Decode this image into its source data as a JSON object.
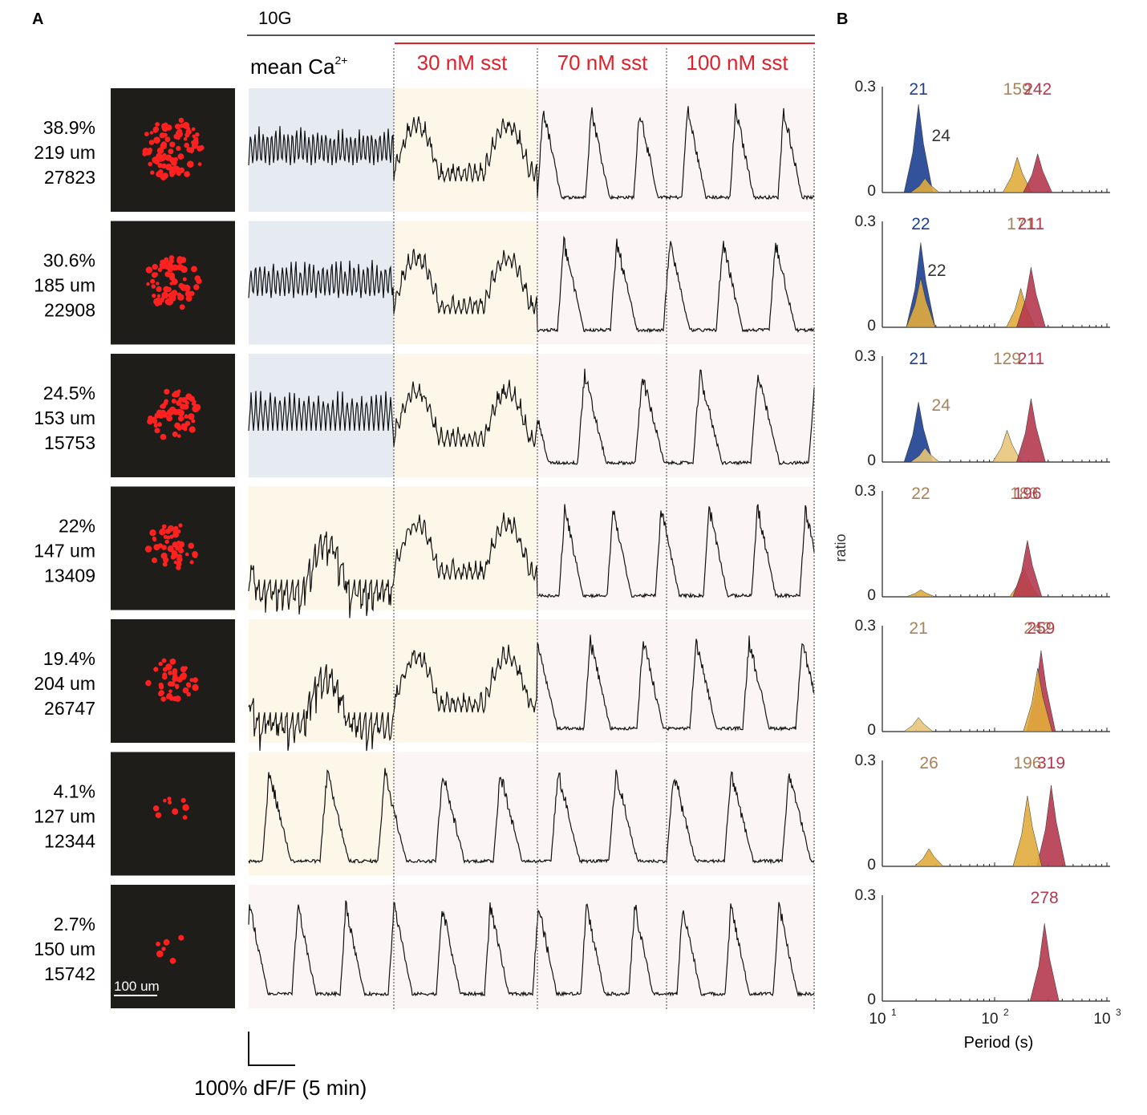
{
  "panel_labels": {
    "a": "A",
    "b": "B"
  },
  "header": {
    "glucose": "10G",
    "mean_label": "mean Ca",
    "mean_sup": "2+",
    "conditions": [
      "30 nM sst",
      "70 nM sst",
      "100 nM sst"
    ]
  },
  "colors": {
    "accent_red": "#e0212b",
    "bg_blue": "#e6ebf2",
    "bg_yellow": "#fdf7ea",
    "bg_pink": "#fcf5f5",
    "navy": "#1c3f91",
    "gold": "#e0ac3c",
    "tan": "#e8c57a",
    "crimson": "#b5394e",
    "label_navy": "#1c3f91",
    "label_tan": "#a8835a",
    "label_crimson": "#b5394e",
    "label_gray": "#333333"
  },
  "islets": [
    {
      "pct": "38.9%",
      "size": "219 um",
      "count": "27823",
      "stage1": "blue",
      "stage2": "yellow"
    },
    {
      "pct": "30.6%",
      "size": "185 um",
      "count": "22908",
      "stage1": "blue",
      "stage2": "yellow"
    },
    {
      "pct": "24.5%",
      "size": "153 um",
      "count": "15753",
      "stage1": "blue",
      "stage2": "yellow"
    },
    {
      "pct": "22%",
      "size": "147 um",
      "count": "13409",
      "stage1": "yellow",
      "stage2": "yellow"
    },
    {
      "pct": "19.4%",
      "size": "204 um",
      "count": "26747",
      "stage1": "yellow",
      "stage2": "yellow"
    },
    {
      "pct": "4.1%",
      "size": "127 um",
      "count": "12344",
      "stage1": "yellow",
      "stage2": "pink"
    },
    {
      "pct": "2.7%",
      "size": "150 um",
      "count": "15742",
      "stage1": "pink",
      "stage2": "pink"
    }
  ],
  "scale_bar_label": "100 um",
  "trace_scale_label": "100% dF/F (5 min)",
  "chart_data": {
    "type": "area",
    "description_axis": "log-scaled period histograms, one per islet",
    "xlabel": "Period (s)",
    "ylabel": "ratio",
    "x_scale": "log",
    "xlim": [
      10,
      1000
    ],
    "ylim": [
      0,
      0.3
    ],
    "x_ticks": [
      {
        "base": "10",
        "exp": "1"
      },
      {
        "base": "10",
        "exp": "2"
      },
      {
        "base": "10",
        "exp": "3"
      }
    ],
    "y_ticks": [
      "0",
      "0.3"
    ],
    "panels": [
      {
        "series": [
          {
            "color": "navy",
            "peak_x": 21,
            "peak_y": 0.25
          },
          {
            "color": "gold",
            "peak_x": 24,
            "peak_y": 0.04
          },
          {
            "color": "gold",
            "peak_x": 159,
            "peak_y": 0.1
          },
          {
            "color": "crimson",
            "peak_x": 242,
            "peak_y": 0.11
          }
        ],
        "labels": [
          {
            "text": "21",
            "color": "label_navy",
            "x": 21
          },
          {
            "text": "24",
            "color": "label_gray",
            "x": 24
          },
          {
            "text": "159",
            "color": "label_tan",
            "x": 159
          },
          {
            "text": "242",
            "color": "label_crimson",
            "x": 242
          }
        ]
      },
      {
        "series": [
          {
            "color": "navy",
            "peak_x": 22,
            "peak_y": 0.24
          },
          {
            "color": "gold",
            "peak_x": 22,
            "peak_y": 0.14
          },
          {
            "color": "gold",
            "peak_x": 171,
            "peak_y": 0.11
          },
          {
            "color": "crimson",
            "peak_x": 211,
            "peak_y": 0.17
          }
        ],
        "labels": [
          {
            "text": "22",
            "color": "label_navy",
            "x": 22
          },
          {
            "text": "22",
            "color": "label_gray",
            "x": 22
          },
          {
            "text": "171",
            "color": "label_tan",
            "x": 171
          },
          {
            "text": "211",
            "color": "label_crimson",
            "x": 211
          }
        ]
      },
      {
        "series": [
          {
            "color": "navy",
            "peak_x": 21,
            "peak_y": 0.17
          },
          {
            "color": "tan",
            "peak_x": 24,
            "peak_y": 0.04
          },
          {
            "color": "tan",
            "peak_x": 129,
            "peak_y": 0.09
          },
          {
            "color": "crimson",
            "peak_x": 211,
            "peak_y": 0.18
          }
        ],
        "labels": [
          {
            "text": "21",
            "color": "label_navy",
            "x": 21
          },
          {
            "text": "24",
            "color": "label_tan",
            "x": 24
          },
          {
            "text": "129",
            "color": "label_tan",
            "x": 129
          },
          {
            "text": "211",
            "color": "label_crimson",
            "x": 211
          }
        ]
      },
      {
        "series": [
          {
            "color": "gold",
            "peak_x": 22,
            "peak_y": 0.02
          },
          {
            "color": "gold",
            "peak_x": 183,
            "peak_y": 0.08
          },
          {
            "color": "crimson",
            "peak_x": 196,
            "peak_y": 0.16
          }
        ],
        "labels": [
          {
            "text": "22",
            "color": "label_tan",
            "x": 22
          },
          {
            "text": "183",
            "color": "label_tan",
            "x": 183
          },
          {
            "text": "196",
            "color": "label_crimson",
            "x": 196
          }
        ]
      },
      {
        "series": [
          {
            "color": "tan",
            "peak_x": 21,
            "peak_y": 0.04
          },
          {
            "color": "crimson",
            "peak_x": 259,
            "peak_y": 0.23
          },
          {
            "color": "gold",
            "peak_x": 242,
            "peak_y": 0.18
          }
        ],
        "labels": [
          {
            "text": "21",
            "color": "label_tan",
            "x": 21
          },
          {
            "text": "242",
            "color": "label_tan",
            "x": 242
          },
          {
            "text": "259",
            "color": "label_crimson",
            "x": 259
          }
        ]
      },
      {
        "series": [
          {
            "color": "gold",
            "peak_x": 26,
            "peak_y": 0.05
          },
          {
            "color": "crimson",
            "peak_x": 319,
            "peak_y": 0.23
          },
          {
            "color": "gold",
            "peak_x": 196,
            "peak_y": 0.2
          }
        ],
        "labels": [
          {
            "text": "26",
            "color": "label_tan",
            "x": 26
          },
          {
            "text": "196",
            "color": "label_tan",
            "x": 196
          },
          {
            "text": "319",
            "color": "label_crimson",
            "x": 319
          }
        ]
      },
      {
        "series": [
          {
            "color": "crimson",
            "peak_x": 278,
            "peak_y": 0.22
          }
        ],
        "labels": [
          {
            "text": "278",
            "color": "label_crimson",
            "x": 278
          }
        ]
      }
    ]
  }
}
